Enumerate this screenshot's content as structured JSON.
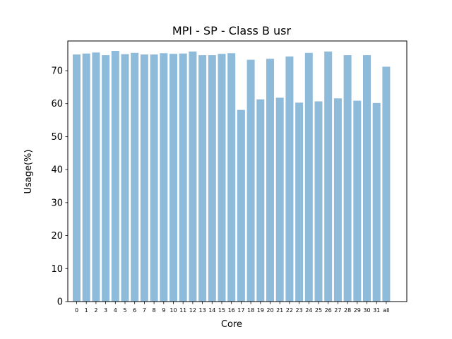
{
  "chart_data": {
    "type": "bar",
    "title": "MPI - SP - Class B usr",
    "xlabel": "Core",
    "ylabel": "Usage(%)",
    "ylim": [
      0,
      79
    ],
    "yticks": [
      0,
      10,
      20,
      30,
      40,
      50,
      60,
      70
    ],
    "grid": false,
    "bar_color": "#8fbbdb",
    "categories": [
      "0",
      "1",
      "2",
      "3",
      "4",
      "5",
      "6",
      "7",
      "8",
      "9",
      "10",
      "11",
      "12",
      "13",
      "14",
      "15",
      "16",
      "17",
      "18",
      "19",
      "20",
      "21",
      "22",
      "23",
      "24",
      "25",
      "26",
      "27",
      "28",
      "29",
      "30",
      "31",
      "all"
    ],
    "values": [
      74.9,
      75.2,
      75.5,
      74.7,
      76.0,
      75.0,
      75.4,
      74.9,
      74.9,
      75.3,
      75.1,
      75.2,
      75.8,
      74.7,
      74.7,
      75.1,
      75.3,
      58.1,
      73.3,
      61.3,
      73.6,
      61.8,
      74.3,
      60.3,
      75.4,
      60.7,
      75.8,
      61.6,
      74.7,
      60.9,
      74.7,
      60.2,
      71.2
    ]
  }
}
